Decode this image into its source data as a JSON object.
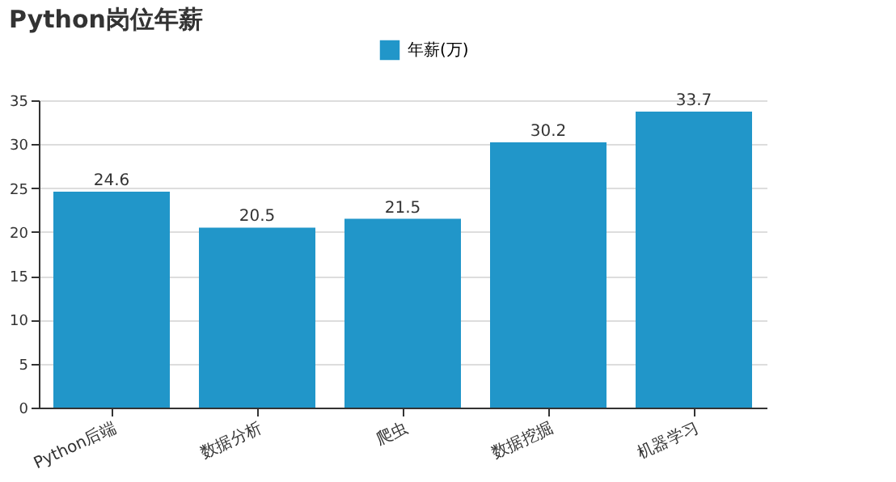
{
  "chart_data": {
    "type": "bar",
    "title": "Python岗位年薪",
    "categories": [
      "Python后端",
      "数据分析",
      "爬虫",
      "数据挖掘",
      "机器学习"
    ],
    "series": [
      {
        "name": "年薪(万)",
        "color": "#2196c9",
        "values": [
          24.6,
          20.5,
          21.5,
          30.2,
          33.7
        ]
      }
    ],
    "ylim": [
      0,
      35
    ],
    "yticks": [
      0,
      5,
      10,
      15,
      20,
      25,
      30,
      35
    ],
    "grid": "y",
    "legend": "top",
    "data_labels": true
  }
}
